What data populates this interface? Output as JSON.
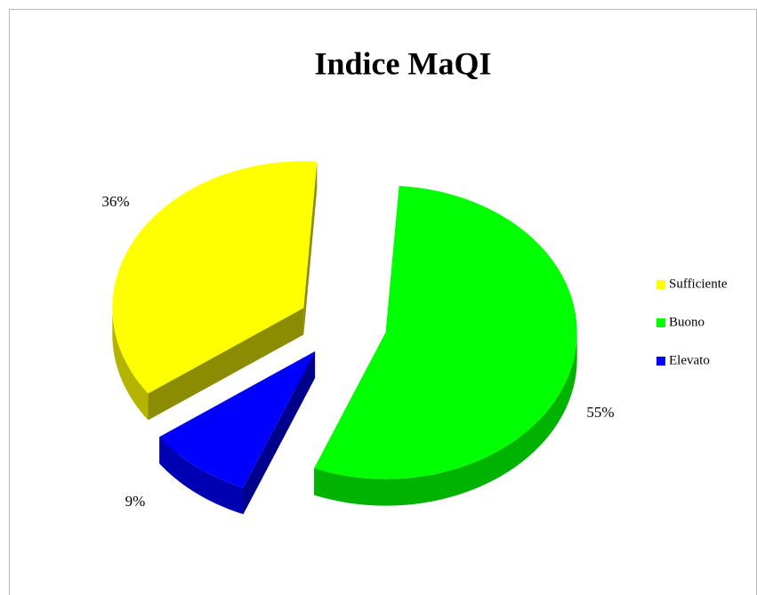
{
  "chart_data": {
    "type": "pie",
    "title": "Indice MaQI",
    "categories": [
      "Sufficiente",
      "Buono",
      "Elevato"
    ],
    "values": [
      36,
      55,
      9
    ],
    "value_labels": [
      "36%",
      "55%",
      "9%"
    ],
    "colors": [
      "#ffff00",
      "#00ff00",
      "#0000ff"
    ],
    "legend": "right"
  }
}
